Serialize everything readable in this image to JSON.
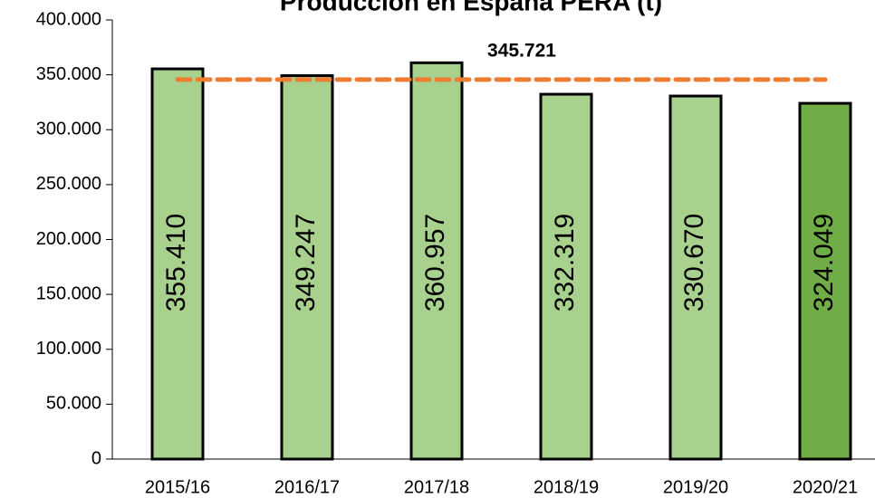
{
  "chart_data": {
    "type": "bar",
    "title": "Producción en España PERA (t)",
    "categories": [
      "2015/16",
      "2016/17",
      "2017/18",
      "2018/19",
      "2019/20",
      "2020/21"
    ],
    "values": [
      355410,
      349247,
      360957,
      332319,
      330670,
      324049
    ],
    "value_labels": [
      "355.410",
      "349.247",
      "360.957",
      "332.319",
      "330.670",
      "324.049"
    ],
    "colors": [
      "#a9d18e",
      "#a9d18e",
      "#a9d18e",
      "#a9d18e",
      "#a9d18e",
      "#70ad47"
    ],
    "average": {
      "value": 345721,
      "label": "345.721",
      "color": "#ed7d31"
    },
    "ylim": [
      0,
      400000
    ],
    "yticks": [
      0,
      {
        "value": 50000,
        "label": "50.000"
      },
      {
        "value": 100000,
        "label": "100.000"
      },
      {
        "value": 150000,
        "label": "150.000"
      },
      {
        "value": 200000,
        "label": "200.000"
      },
      {
        "value": 250000,
        "label": "250.000"
      },
      {
        "value": 300000,
        "label": "300.000"
      },
      {
        "value": 350000,
        "label": "350.000"
      },
      {
        "value": 400000,
        "label": "400.000"
      }
    ]
  }
}
